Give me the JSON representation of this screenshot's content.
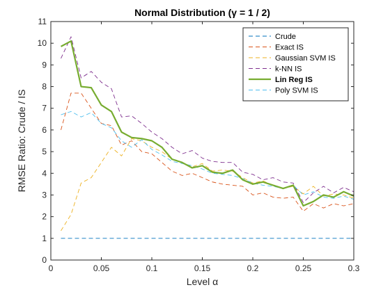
{
  "chart_data": {
    "type": "line",
    "title": "Normal Distribution (γ = 1 / 2)",
    "xlabel": "Level α",
    "ylabel": "RMSE Ratio: Crude / IS",
    "xlim": [
      0,
      0.3
    ],
    "ylim": [
      0,
      11
    ],
    "x_ticks": [
      "0",
      "0.05",
      "0.1",
      "0.15",
      "0.2",
      "0.25",
      "0.3"
    ],
    "y_ticks": [
      "0",
      "1",
      "2",
      "3",
      "4",
      "5",
      "6",
      "7",
      "8",
      "9",
      "10",
      "11"
    ],
    "grid": false,
    "legend_position": "top-right",
    "x": [
      0.01,
      0.02,
      0.03,
      0.04,
      0.05,
      0.06,
      0.07,
      0.08,
      0.09,
      0.1,
      0.11,
      0.12,
      0.13,
      0.14,
      0.15,
      0.16,
      0.17,
      0.18,
      0.19,
      0.2,
      0.21,
      0.22,
      0.23,
      0.24,
      0.25,
      0.26,
      0.27,
      0.28,
      0.29,
      0.3
    ],
    "series": [
      {
        "name": "Crude",
        "color": "#0072BD",
        "dash": "dashed",
        "bold": false,
        "values": [
          1,
          1,
          1,
          1,
          1,
          1,
          1,
          1,
          1,
          1,
          1,
          1,
          1,
          1,
          1,
          1,
          1,
          1,
          1,
          1,
          1,
          1,
          1,
          1,
          1,
          1,
          1,
          1,
          1,
          1
        ]
      },
      {
        "name": "Exact IS",
        "color": "#D95319",
        "dash": "dashed",
        "bold": false,
        "values": [
          6.0,
          7.7,
          7.7,
          7.0,
          6.3,
          6.2,
          5.3,
          5.5,
          5.0,
          4.9,
          4.5,
          4.1,
          3.9,
          4.0,
          3.8,
          3.6,
          3.5,
          3.45,
          3.4,
          3.0,
          3.1,
          2.9,
          2.85,
          2.9,
          2.25,
          2.6,
          2.4,
          2.6,
          2.5,
          2.6
        ]
      },
      {
        "name": "Gaussian SVM IS",
        "color": "#EDB120",
        "dash": "dashed",
        "bold": false,
        "values": [
          1.35,
          2.1,
          3.55,
          3.8,
          4.5,
          5.2,
          4.8,
          5.6,
          5.5,
          5.2,
          5.0,
          4.65,
          4.5,
          4.3,
          4.45,
          4.1,
          4.15,
          4.1,
          3.8,
          3.55,
          3.65,
          3.45,
          3.3,
          3.4,
          3.05,
          3.4,
          2.95,
          3.05,
          3.0,
          2.85
        ]
      },
      {
        "name": "k-NN IS",
        "color": "#7E2F8E",
        "dash": "dashed",
        "bold": false,
        "values": [
          9.3,
          10.3,
          8.4,
          8.7,
          8.2,
          7.9,
          6.6,
          6.65,
          6.3,
          5.9,
          5.6,
          5.2,
          4.9,
          5.05,
          4.7,
          4.55,
          4.5,
          4.5,
          4.05,
          3.95,
          3.7,
          3.8,
          3.6,
          3.55,
          2.65,
          3.1,
          3.4,
          3.1,
          3.35,
          3.15
        ]
      },
      {
        "name": "Lin Reg IS",
        "color": "#77AC30",
        "dash": "solid",
        "bold": true,
        "values": [
          9.85,
          10.1,
          8.0,
          7.95,
          7.15,
          6.85,
          5.9,
          5.65,
          5.6,
          5.5,
          5.2,
          4.65,
          4.5,
          4.25,
          4.35,
          4.05,
          4.0,
          4.15,
          3.7,
          3.5,
          3.6,
          3.45,
          3.3,
          3.45,
          2.5,
          2.7,
          3.0,
          2.9,
          3.15,
          2.95
        ]
      },
      {
        "name": "Poly SVM IS",
        "color": "#4DBEEE",
        "dash": "dashed",
        "bold": false,
        "values": [
          6.7,
          6.85,
          6.6,
          6.8,
          6.3,
          6.1,
          5.5,
          5.2,
          5.55,
          5.1,
          4.85,
          4.55,
          4.45,
          4.35,
          4.2,
          4.0,
          3.95,
          3.9,
          3.75,
          3.55,
          3.45,
          3.4,
          3.3,
          3.45,
          3.0,
          3.15,
          2.9,
          2.85,
          2.95,
          2.8
        ]
      }
    ]
  }
}
